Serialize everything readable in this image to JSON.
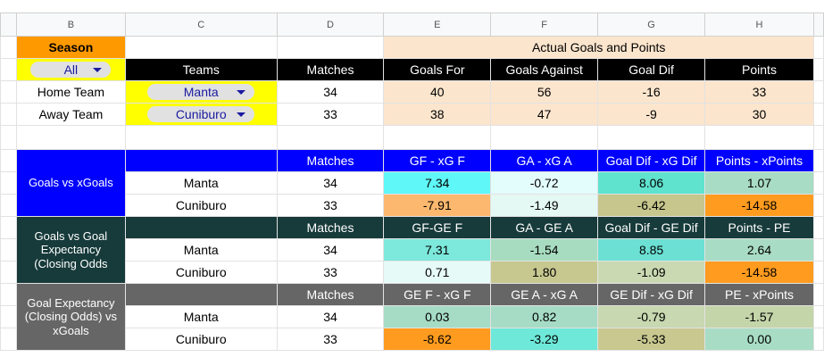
{
  "columns": [
    "B",
    "C",
    "D",
    "E",
    "F",
    "G",
    "H"
  ],
  "season": {
    "label": "Season",
    "filter": "All"
  },
  "actual": {
    "title": "Actual Goals and Points",
    "headers": [
      "Teams",
      "Matches",
      "Goals For",
      "Goals Against",
      "Goal Dif",
      "Points"
    ],
    "rows": [
      {
        "label": "Home Team",
        "team": "Manta",
        "cells": [
          "34",
          "40",
          "56",
          "-16",
          "33"
        ]
      },
      {
        "label": "Away Team",
        "team": "Cuniburo",
        "cells": [
          "33",
          "38",
          "47",
          "-9",
          "30"
        ]
      }
    ]
  },
  "sections": [
    {
      "title": "Goals vs xGoals",
      "headers": [
        "Matches",
        "GF - xG F",
        "GA - xG A",
        "Goal Dif - xG Dif",
        "Points - xPoints"
      ],
      "rows": [
        {
          "team": "Manta",
          "cells": [
            "34",
            "7.34",
            "-0.72",
            "8.06",
            "1.07"
          ]
        },
        {
          "team": "Cuniburo",
          "cells": [
            "33",
            "-7.91",
            "-1.49",
            "-6.42",
            "-14.58"
          ]
        }
      ]
    },
    {
      "title": "Goals vs Goal Expectancy (Closing Odds",
      "headers": [
        "Matches",
        "GF-GE F",
        "GA - GE A",
        "Goal Dif - GE Dif",
        "Points - PE"
      ],
      "rows": [
        {
          "team": "Manta",
          "cells": [
            "34",
            "7.31",
            "-1.54",
            "8.85",
            "2.64"
          ]
        },
        {
          "team": "Cuniburo",
          "cells": [
            "33",
            "0.71",
            "1.80",
            "-1.09",
            "-14.58"
          ]
        }
      ]
    },
    {
      "title": "Goal Expectancy (Closing Odds) vs xGoals",
      "headers": [
        "Matches",
        "GE F - xG F",
        "GE A - xG A",
        "GE Dif - xG Dif",
        "PE - xPoints"
      ],
      "rows": [
        {
          "team": "Manta",
          "cells": [
            "34",
            "0.03",
            "0.82",
            "-0.79",
            "-1.57"
          ]
        },
        {
          "team": "Cuniburo",
          "cells": [
            "33",
            "-8.62",
            "-3.29",
            "-5.33",
            "0.00"
          ]
        }
      ]
    }
  ]
}
